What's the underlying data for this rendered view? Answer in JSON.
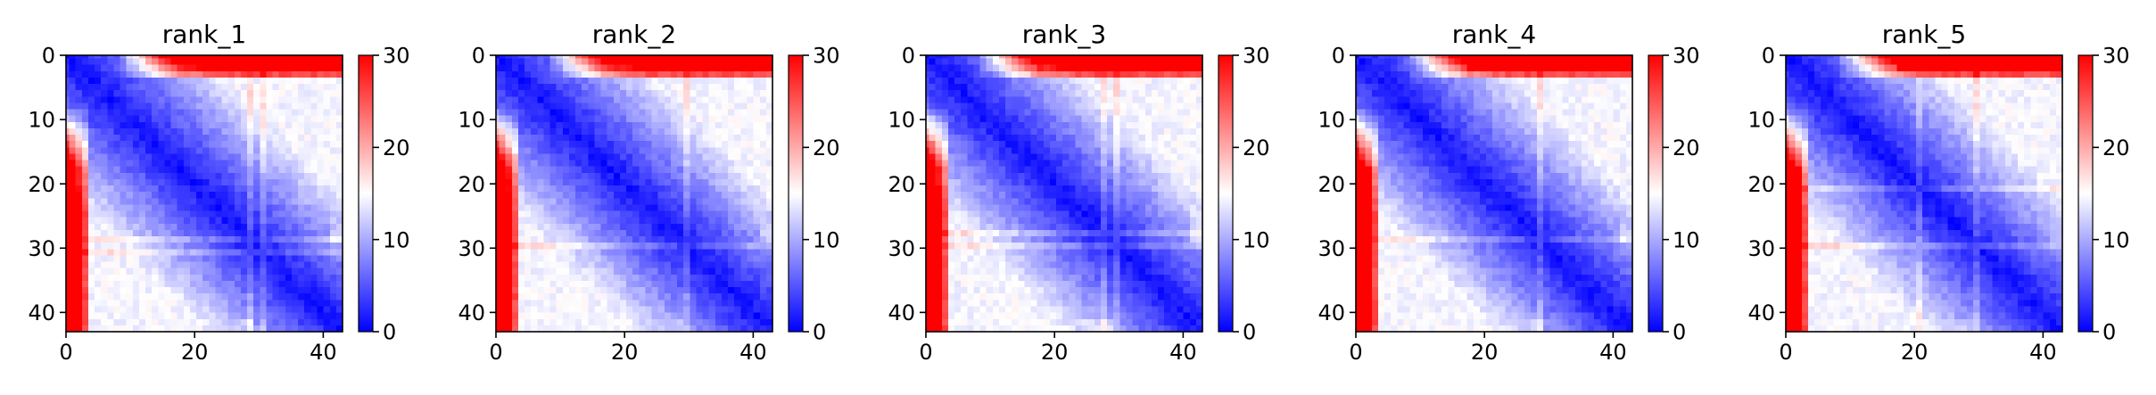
{
  "figure": {
    "background": "#ffffff",
    "colormap": "bwr",
    "cmap_colors": [
      "#0000ff",
      "#ffffff",
      "#ff0000"
    ]
  },
  "chart_data": [
    {
      "type": "heatmap",
      "title": "rank_1",
      "size": 44,
      "vmin": 0,
      "vmax": 30,
      "xlim": [
        0,
        43
      ],
      "ylim": [
        43,
        0
      ],
      "x_ticks": [
        0,
        20,
        40
      ],
      "x_tick_labels": [
        "0",
        "20",
        "40"
      ],
      "y_ticks": [
        0,
        10,
        20,
        30,
        40
      ],
      "y_tick_labels": [
        "0",
        "10",
        "20",
        "30",
        "40"
      ],
      "colorbar_ticks": [
        0,
        10,
        20,
        30
      ],
      "colorbar_tick_labels": [
        "0",
        "10",
        "20",
        "30"
      ],
      "pattern": {
        "diag": 1.0,
        "slope": 0.62,
        "max_off": 13.5,
        "top_start": 4,
        "top_gain": 28,
        "left_start": 30,
        "left_gain": 6,
        "bottom_rows": [
          42,
          43
        ],
        "bottom_val": 13,
        "stripes": [
          29,
          31
        ],
        "seed": 11
      }
    },
    {
      "type": "heatmap",
      "title": "rank_2",
      "size": 44,
      "vmin": 0,
      "vmax": 30,
      "xlim": [
        0,
        43
      ],
      "ylim": [
        43,
        0
      ],
      "x_ticks": [
        0,
        20,
        40
      ],
      "x_tick_labels": [
        "0",
        "20",
        "40"
      ],
      "y_ticks": [
        0,
        10,
        20,
        30,
        40
      ],
      "y_tick_labels": [
        "0",
        "10",
        "20",
        "30",
        "40"
      ],
      "colorbar_ticks": [
        0,
        10,
        20,
        30
      ],
      "colorbar_tick_labels": [
        "0",
        "10",
        "20",
        "30"
      ],
      "pattern": {
        "diag": 1.0,
        "slope": 0.62,
        "max_off": 13.5,
        "top_start": 4,
        "top_gain": 28,
        "left_start": 22,
        "left_gain": 12,
        "bottom_rows": [
          42,
          43
        ],
        "bottom_val": 13,
        "stripes": [
          30
        ],
        "seed": 23
      }
    },
    {
      "type": "heatmap",
      "title": "rank_3",
      "size": 44,
      "vmin": 0,
      "vmax": 30,
      "xlim": [
        0,
        43
      ],
      "ylim": [
        43,
        0
      ],
      "x_ticks": [
        0,
        20,
        40
      ],
      "x_tick_labels": [
        "0",
        "20",
        "40"
      ],
      "y_ticks": [
        0,
        10,
        20,
        30,
        40
      ],
      "y_tick_labels": [
        "0",
        "10",
        "20",
        "30",
        "40"
      ],
      "colorbar_ticks": [
        0,
        10,
        20,
        30
      ],
      "colorbar_tick_labels": [
        "0",
        "10",
        "20",
        "30"
      ],
      "pattern": {
        "diag": 1.0,
        "slope": 0.62,
        "max_off": 13.5,
        "top_start": 4,
        "top_gain": 28,
        "left_start": 24,
        "left_gain": 12,
        "bottom_rows": [
          42,
          43
        ],
        "bottom_val": 14,
        "stripes": [
          28,
          30
        ],
        "seed": 37
      }
    },
    {
      "type": "heatmap",
      "title": "rank_4",
      "size": 44,
      "vmin": 0,
      "vmax": 30,
      "xlim": [
        0,
        43
      ],
      "ylim": [
        43,
        0
      ],
      "x_ticks": [
        0,
        20,
        40
      ],
      "x_tick_labels": [
        "0",
        "20",
        "40"
      ],
      "y_ticks": [
        0,
        10,
        20,
        30,
        40
      ],
      "y_tick_labels": [
        "0",
        "10",
        "20",
        "30",
        "40"
      ],
      "colorbar_ticks": [
        0,
        10,
        20,
        30
      ],
      "colorbar_tick_labels": [
        "0",
        "10",
        "20",
        "30"
      ],
      "pattern": {
        "diag": 1.0,
        "slope": 0.62,
        "max_off": 13.5,
        "top_start": 4,
        "top_gain": 28,
        "left_start": 18,
        "left_gain": 14,
        "bottom_rows": [
          42,
          43
        ],
        "bottom_val": 13,
        "stripes": [
          29
        ],
        "seed": 41
      }
    },
    {
      "type": "heatmap",
      "title": "rank_5",
      "size": 44,
      "vmin": 0,
      "vmax": 30,
      "xlim": [
        0,
        43
      ],
      "ylim": [
        43,
        0
      ],
      "x_ticks": [
        0,
        20,
        40
      ],
      "x_tick_labels": [
        "0",
        "20",
        "40"
      ],
      "y_ticks": [
        0,
        10,
        20,
        30,
        40
      ],
      "y_tick_labels": [
        "0",
        "10",
        "20",
        "30",
        "40"
      ],
      "colorbar_ticks": [
        0,
        10,
        20,
        30
      ],
      "colorbar_tick_labels": [
        "0",
        "10",
        "20",
        "30"
      ],
      "pattern": {
        "diag": 1.0,
        "slope": 0.62,
        "max_off": 13.5,
        "top_start": 4,
        "top_gain": 28,
        "left_start": 18,
        "left_gain": 14,
        "bottom_rows": [
          42,
          43
        ],
        "bottom_val": 13,
        "stripes": [
          21,
          30
        ],
        "seed": 53
      }
    }
  ]
}
